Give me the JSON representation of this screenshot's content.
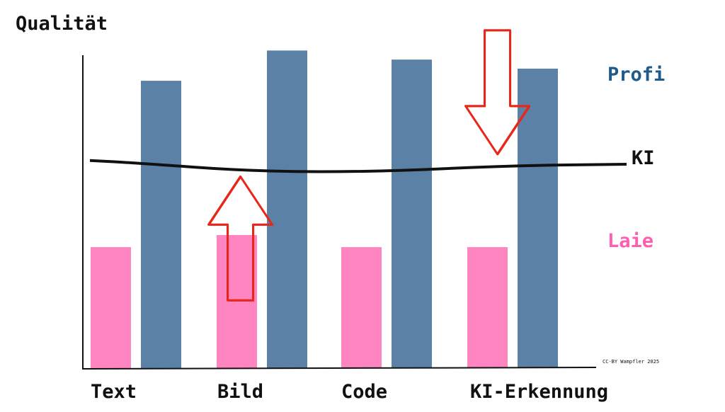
{
  "chart_data": {
    "type": "bar",
    "ylabel": "Qualität",
    "categories": [
      "Text",
      "Bild",
      "Code",
      "KI-Erkennung"
    ],
    "series": [
      {
        "name": "Laie",
        "values": [
          40,
          44,
          40,
          40
        ],
        "color": "#ff85c1"
      },
      {
        "name": "Profi",
        "values": [
          95,
          105,
          102,
          99
        ],
        "color": "#5b82a6"
      }
    ],
    "reference_line": {
      "name": "KI",
      "values": [
        68,
        65,
        65,
        67
      ],
      "color": "#111111"
    },
    "arrows": [
      {
        "category": "Bild",
        "direction": "up",
        "color": "#e8261b"
      },
      {
        "category": "KI-Erkennung",
        "direction": "down",
        "color": "#e8261b"
      }
    ],
    "ylim": [
      0,
      110
    ],
    "grid": false,
    "legend": "right"
  },
  "credit": "CC-BY Wampfler 2025"
}
